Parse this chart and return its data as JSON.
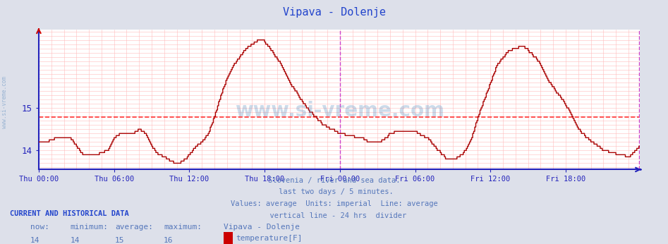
{
  "title": "Vipava - Dolenje",
  "bg_color": "#dde0ea",
  "plot_bg_color": "#ffffff",
  "line_color": "#aa0000",
  "average_line_color": "#ff3333",
  "vline_color": "#cc44cc",
  "axis_color": "#2222bb",
  "text_color": "#5577bb",
  "title_color": "#2244cc",
  "grid_color_h": "#ffbbbb",
  "grid_color_v": "#ffbbbb",
  "watermark_color": "#5588bb",
  "subtitle_lines": [
    "Slovenia / river and sea data.",
    " last two days / 5 minutes.",
    "Values: average  Units: imperial  Line: average",
    "  vertical line - 24 hrs  divider"
  ],
  "footer_title": "CURRENT AND HISTORICAL DATA",
  "footer_labels": [
    "now:",
    "minimum:",
    "average:",
    "maximum:",
    "Vipava - Dolenje"
  ],
  "footer_values": [
    "14",
    "14",
    "15",
    "16"
  ],
  "footer_legend_label": "temperature[F]",
  "footer_legend_color": "#cc0000",
  "xlim": [
    0,
    575
  ],
  "ylim_bottom": 13.55,
  "ylim_top": 16.85,
  "yticks": [
    14,
    15
  ],
  "xtick_positions": [
    0,
    72,
    144,
    216,
    288,
    360,
    432,
    504
  ],
  "xtick_labels": [
    "Thu 00:00",
    "Thu 06:00",
    "Thu 12:00",
    "Thu 18:00",
    "Fri 00:00",
    "Fri 06:00",
    "Fri 12:00",
    "Fri 18:00"
  ],
  "average_value": 14.78,
  "vline_x": 288,
  "vline2_x": 575,
  "watermark": "www.si-vreme.com",
  "ytick_minor_step": 0.1
}
